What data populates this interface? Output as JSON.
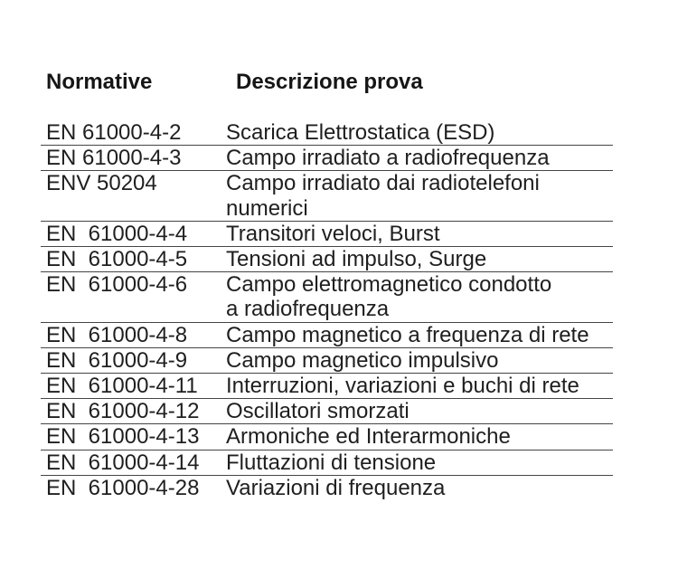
{
  "document": {
    "colors": {
      "background": "#ffffff",
      "text": "#1f1f1f",
      "rule": "#454545"
    },
    "header": {
      "normative": "Normative",
      "descrizione": "Descrizione prova"
    },
    "rows": [
      {
        "norm": "EN 61000-4-2",
        "desc": "Scarica Elettrostatica (ESD)"
      },
      {
        "norm": "EN 61000-4-3",
        "desc": "Campo irradiato a radiofrequenza"
      },
      {
        "norm": "ENV 50204",
        "desc": "Campo irradiato dai radiotelefoni\nnumerici"
      },
      {
        "norm": "EN  61000-4-4",
        "desc": "Transitori veloci, Burst"
      },
      {
        "norm": "EN  61000-4-5",
        "desc": "Tensioni ad impulso, Surge"
      },
      {
        "norm": "EN  61000-4-6",
        "desc": "Campo elettromagnetico condotto\na radiofrequenza"
      },
      {
        "norm": "EN  61000-4-8",
        "desc": "Campo magnetico a frequenza di rete"
      },
      {
        "norm": "EN  61000-4-9",
        "desc": "Campo magnetico impulsivo"
      },
      {
        "norm": "EN  61000-4-11",
        "desc": "Interruzioni, variazioni e buchi di rete"
      },
      {
        "norm": "EN  61000-4-12",
        "desc": "Oscillatori smorzati"
      },
      {
        "norm": "EN  61000-4-13",
        "desc": "Armoniche ed Interarmoniche"
      },
      {
        "norm": "EN  61000-4-14",
        "desc": "Fluttazioni di tensione"
      },
      {
        "norm": "EN  61000-4-28",
        "desc": "Variazioni di frequenza"
      }
    ]
  }
}
